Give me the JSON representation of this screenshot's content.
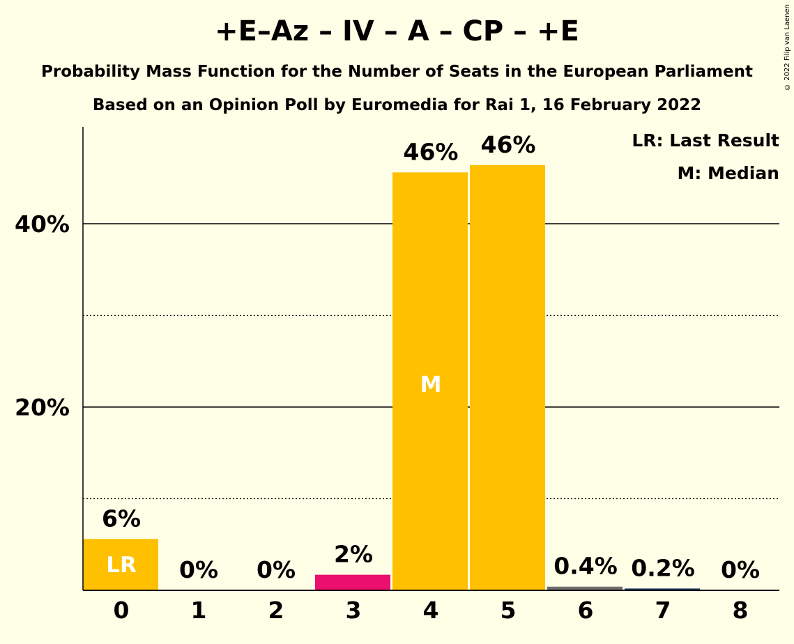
{
  "header": {
    "title": "+E–Az – IV – A – CP – +E",
    "subtitle1": "Probability Mass Function for the Number of Seats in the European Parliament",
    "subtitle2": "Based on an Opinion Poll by Euromedia for Rai 1, 16 February 2022",
    "copyright": "© 2022 Filip van Laenen"
  },
  "legend": {
    "last_result": "LR: Last Result",
    "median": "M: Median"
  },
  "chart_data": {
    "type": "bar",
    "categories": [
      "0",
      "1",
      "2",
      "3",
      "4",
      "5",
      "6",
      "7",
      "8"
    ],
    "values": [
      5.6,
      0,
      0,
      1.7,
      45.6,
      46.4,
      0.4,
      0.2,
      0
    ],
    "value_labels": [
      "6%",
      "0%",
      "0%",
      "2%",
      "46%",
      "46%",
      "0.4%",
      "0.2%",
      "0%"
    ],
    "bar_colors": [
      "#FFC000",
      "#FFC000",
      "#FFC000",
      "#EB0F6E",
      "#FFC000",
      "#FFC000",
      "#6E6E6E",
      "#1F3A5F",
      "#FFC000"
    ],
    "inner_labels": {
      "0": "LR",
      "4": "M"
    },
    "yticks": [
      20,
      40
    ],
    "ytick_labels": [
      "20%",
      "40%"
    ],
    "minor_gridlines": [
      10,
      30
    ],
    "ylim": [
      0,
      50
    ],
    "legend_position": "top-right"
  }
}
